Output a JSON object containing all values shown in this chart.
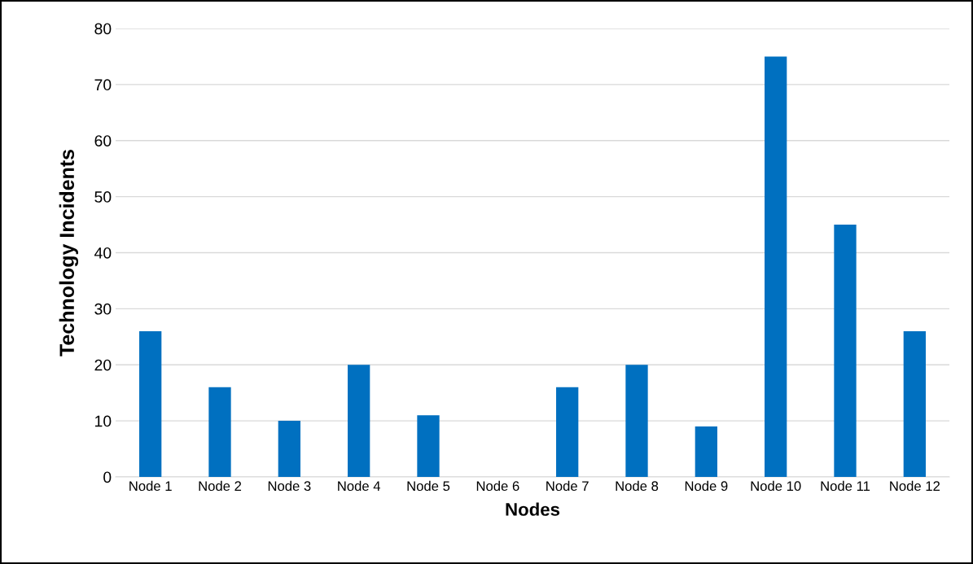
{
  "chart_data": {
    "type": "bar",
    "xlabel": "Nodes",
    "ylabel": "Technology Incidents",
    "categories": [
      "Node 1",
      "Node 2",
      "Node 3",
      "Node 4",
      "Node 5",
      "Node 6",
      "Node 7",
      "Node 8",
      "Node 9",
      "Node 10",
      "Node 11",
      "Node 12"
    ],
    "values": [
      26,
      16,
      10,
      20,
      11,
      0,
      16,
      20,
      9,
      75,
      45,
      26
    ],
    "color": "#0070c0",
    "ylim": [
      0,
      80
    ],
    "yticks": [
      0,
      10,
      20,
      30,
      40,
      50,
      60,
      70,
      80
    ],
    "grid": "y",
    "legend": false
  }
}
